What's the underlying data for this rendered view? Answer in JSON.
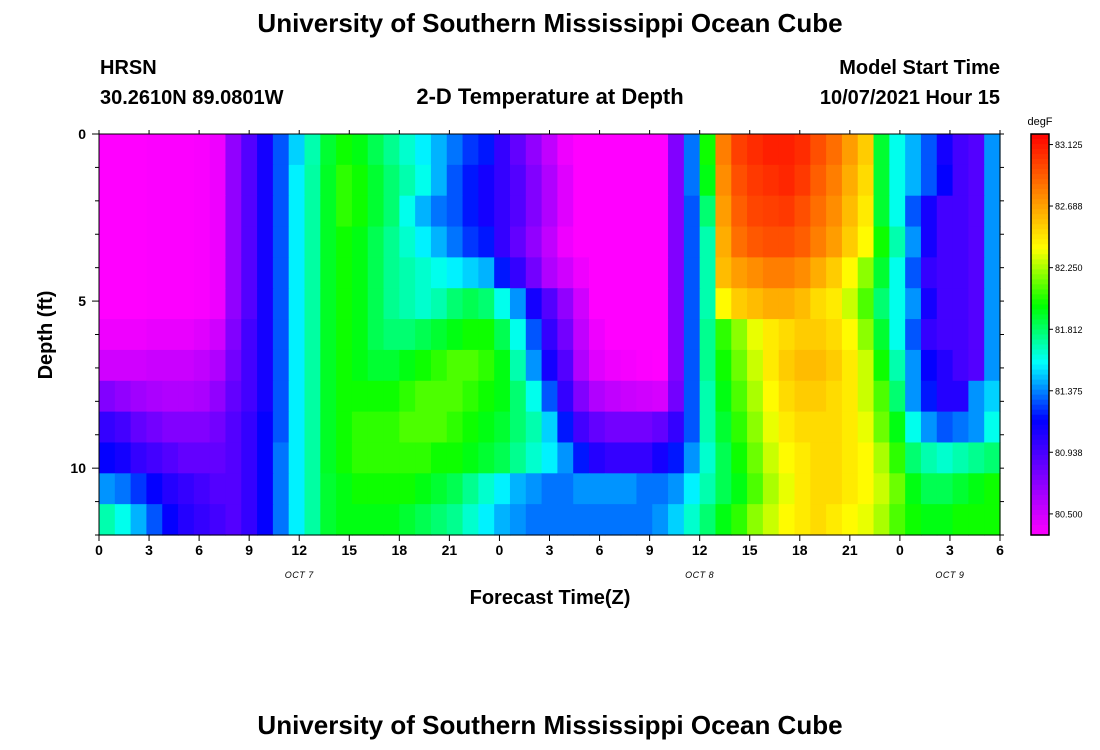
{
  "header": {
    "title": "University of Southern Mississippi Ocean Cube",
    "station": "HRSN",
    "coords": "30.2610N  89.0801W",
    "plot_title": "2-D Temperature at Depth",
    "model_label": "Model Start Time",
    "model_time": "10/07/2021 Hour 15"
  },
  "footer": {
    "title": "University of Southern Mississippi Ocean Cube"
  },
  "colors": {
    "scale": [
      "#ff00ff",
      "#8000ff",
      "#0000ff",
      "#00ffff",
      "#00ff00",
      "#ffff00",
      "#ff8000",
      "#ff0000"
    ]
  },
  "chart_data": {
    "type": "heatmap",
    "title": "2-D Temperature at Depth",
    "xlabel": "Forecast Time(Z)",
    "ylabel": "Depth (ft)",
    "xlim": [
      0,
      54
    ],
    "ylim": [
      0,
      12
    ],
    "x_ticks": [
      {
        "at": 0,
        "label": "0"
      },
      {
        "at": 3,
        "label": "3"
      },
      {
        "at": 6,
        "label": "6"
      },
      {
        "at": 9,
        "label": "9"
      },
      {
        "at": 12,
        "label": "12"
      },
      {
        "at": 15,
        "label": "15"
      },
      {
        "at": 18,
        "label": "18"
      },
      {
        "at": 21,
        "label": "21"
      },
      {
        "at": 24,
        "label": "0"
      },
      {
        "at": 27,
        "label": "3"
      },
      {
        "at": 30,
        "label": "6"
      },
      {
        "at": 33,
        "label": "9"
      },
      {
        "at": 36,
        "label": "12"
      },
      {
        "at": 39,
        "label": "15"
      },
      {
        "at": 42,
        "label": "18"
      },
      {
        "at": 45,
        "label": "21"
      },
      {
        "at": 48,
        "label": "0"
      },
      {
        "at": 51,
        "label": "3"
      },
      {
        "at": 54,
        "label": "6"
      }
    ],
    "date_labels": [
      {
        "at": 12,
        "label": "OCT 7"
      },
      {
        "at": 36,
        "label": "OCT 8"
      },
      {
        "at": 51,
        "label": "OCT 9"
      }
    ],
    "y_ticks": [
      {
        "at": 0,
        "label": "0"
      },
      {
        "at": 5,
        "label": "5"
      },
      {
        "at": 10,
        "label": "10"
      }
    ],
    "colorbar": {
      "unit": "degF",
      "min": 80.35,
      "max": 83.2,
      "labels": [
        "83.125",
        "82.688",
        "82.250",
        "81.812",
        "81.375",
        "80.938",
        "80.500"
      ]
    },
    "depth_levels": [
      0,
      1,
      2,
      3,
      4,
      5,
      6,
      7,
      8,
      9,
      10,
      11,
      12
    ],
    "time_step_hours": 1,
    "values": [
      [
        80.35,
        80.35,
        80.35,
        80.36,
        80.36,
        80.36,
        80.37,
        80.4,
        80.7,
        80.9,
        81.1,
        81.3,
        81.5,
        81.7,
        81.9,
        82.0,
        81.95,
        81.85,
        81.75,
        81.65,
        81.55,
        81.45,
        81.35,
        81.25,
        81.2,
        81.0,
        80.85,
        80.7,
        80.55,
        80.4,
        80.33,
        80.33,
        80.34,
        80.34,
        80.34,
        80.35,
        80.75,
        81.35,
        82.0,
        82.8,
        83.0,
        83.06,
        83.1,
        83.1,
        83.06,
        82.95,
        82.85,
        82.7,
        82.55,
        81.9,
        81.6,
        81.45,
        81.3,
        81.1,
        80.95,
        80.9,
        81.4
      ],
      [
        80.35,
        80.35,
        80.35,
        80.36,
        80.36,
        80.36,
        80.37,
        80.4,
        80.7,
        80.9,
        81.1,
        81.3,
        81.55,
        81.72,
        81.92,
        82.05,
        82.0,
        81.9,
        81.8,
        81.7,
        81.6,
        81.45,
        81.3,
        81.2,
        81.1,
        81.0,
        80.9,
        80.75,
        80.6,
        80.45,
        80.33,
        80.33,
        80.34,
        80.34,
        80.34,
        80.35,
        80.75,
        81.35,
        81.95,
        82.75,
        82.95,
        83.02,
        83.05,
        83.08,
        83.02,
        82.9,
        82.8,
        82.65,
        82.5,
        81.9,
        81.6,
        81.45,
        81.3,
        81.15,
        80.95,
        80.9,
        81.4
      ],
      [
        80.35,
        80.35,
        80.35,
        80.36,
        80.36,
        80.36,
        80.37,
        80.4,
        80.7,
        80.9,
        81.1,
        81.3,
        81.55,
        81.72,
        81.92,
        82.05,
        82.0,
        81.9,
        81.8,
        81.6,
        81.45,
        81.35,
        81.3,
        81.2,
        81.1,
        81.0,
        80.9,
        80.75,
        80.6,
        80.45,
        80.33,
        80.33,
        80.34,
        80.34,
        80.34,
        80.35,
        80.75,
        81.3,
        81.8,
        82.7,
        82.9,
        82.98,
        83.0,
        83.02,
        82.95,
        82.85,
        82.75,
        82.6,
        82.45,
        81.9,
        81.6,
        81.3,
        81.1,
        80.95,
        80.95,
        80.9,
        81.4
      ],
      [
        80.35,
        80.35,
        80.35,
        80.36,
        80.36,
        80.36,
        80.37,
        80.4,
        80.7,
        80.9,
        81.1,
        81.3,
        81.55,
        81.72,
        81.92,
        82.0,
        81.95,
        81.85,
        81.75,
        81.65,
        81.55,
        81.45,
        81.35,
        81.25,
        81.2,
        81.0,
        80.85,
        80.7,
        80.55,
        80.4,
        80.33,
        80.33,
        80.34,
        80.34,
        80.34,
        80.35,
        80.75,
        81.3,
        81.7,
        82.65,
        82.85,
        82.92,
        82.95,
        82.95,
        82.9,
        82.8,
        82.7,
        82.55,
        82.4,
        82.0,
        81.7,
        81.4,
        81.1,
        80.95,
        80.95,
        80.9,
        81.4
      ],
      [
        80.35,
        80.35,
        80.35,
        80.36,
        80.36,
        80.36,
        80.37,
        80.4,
        80.7,
        80.9,
        81.1,
        81.3,
        81.55,
        81.72,
        81.92,
        82.0,
        81.95,
        81.85,
        81.75,
        81.7,
        81.65,
        81.6,
        81.55,
        81.5,
        81.45,
        81.2,
        81.0,
        80.8,
        80.6,
        80.5,
        80.4,
        80.33,
        80.34,
        80.34,
        80.34,
        80.35,
        80.75,
        81.3,
        81.7,
        82.6,
        82.7,
        82.75,
        82.8,
        82.8,
        82.75,
        82.65,
        82.55,
        82.4,
        82.2,
        81.9,
        81.6,
        81.3,
        81.0,
        80.95,
        80.95,
        80.9,
        81.4
      ],
      [
        80.35,
        80.35,
        80.35,
        80.36,
        80.36,
        80.36,
        80.37,
        80.4,
        80.7,
        80.9,
        81.1,
        81.3,
        81.55,
        81.72,
        81.92,
        82.0,
        81.95,
        81.85,
        81.75,
        81.7,
        81.65,
        81.7,
        81.8,
        81.85,
        81.8,
        81.6,
        81.4,
        81.1,
        80.9,
        80.7,
        80.5,
        80.34,
        80.34,
        80.34,
        80.34,
        80.35,
        80.75,
        81.3,
        81.7,
        82.4,
        82.55,
        82.6,
        82.65,
        82.65,
        82.6,
        82.5,
        82.45,
        82.3,
        82.1,
        81.8,
        81.6,
        81.4,
        81.1,
        80.95,
        80.95,
        80.9,
        81.4
      ],
      [
        80.4,
        80.4,
        80.4,
        80.42,
        80.42,
        80.42,
        80.45,
        80.5,
        80.75,
        80.95,
        81.1,
        81.3,
        81.55,
        81.72,
        81.92,
        82.0,
        81.95,
        81.85,
        81.8,
        81.8,
        81.85,
        81.9,
        81.95,
        82.0,
        82.0,
        81.85,
        81.6,
        81.3,
        81.0,
        80.8,
        80.55,
        80.4,
        80.34,
        80.34,
        80.34,
        80.35,
        80.75,
        81.3,
        81.75,
        82.05,
        82.2,
        82.35,
        82.45,
        82.5,
        82.55,
        82.55,
        82.5,
        82.4,
        82.2,
        81.9,
        81.6,
        81.3,
        81.0,
        80.95,
        80.95,
        80.9,
        81.4
      ],
      [
        80.5,
        80.5,
        80.5,
        80.52,
        80.52,
        80.52,
        80.55,
        80.6,
        80.8,
        80.95,
        81.1,
        81.3,
        81.55,
        81.72,
        81.92,
        82.0,
        81.95,
        81.9,
        81.9,
        81.95,
        82.0,
        82.05,
        82.1,
        82.1,
        82.05,
        81.95,
        81.7,
        81.4,
        81.1,
        80.9,
        80.6,
        80.45,
        80.4,
        80.38,
        80.36,
        80.35,
        80.75,
        81.3,
        81.75,
        82.0,
        82.15,
        82.3,
        82.45,
        82.55,
        82.6,
        82.6,
        82.55,
        82.45,
        82.3,
        82.0,
        81.7,
        81.4,
        81.15,
        81.05,
        80.95,
        80.9,
        81.4
      ],
      [
        80.75,
        80.7,
        80.65,
        80.62,
        80.6,
        80.6,
        80.62,
        80.7,
        80.85,
        80.95,
        81.1,
        81.3,
        81.55,
        81.72,
        81.92,
        82.0,
        82.0,
        82.0,
        82.0,
        82.05,
        82.1,
        82.1,
        82.1,
        82.05,
        82.0,
        81.95,
        81.8,
        81.6,
        81.3,
        81.0,
        80.75,
        80.6,
        80.55,
        80.52,
        80.5,
        80.48,
        80.8,
        81.3,
        81.7,
        81.95,
        82.1,
        82.25,
        82.4,
        82.5,
        82.55,
        82.55,
        82.5,
        82.45,
        82.3,
        82.1,
        81.8,
        81.4,
        81.2,
        81.05,
        81.05,
        81.4,
        81.5
      ],
      [
        81.0,
        80.95,
        80.85,
        80.8,
        80.75,
        80.75,
        80.75,
        80.8,
        80.9,
        81.0,
        81.15,
        81.3,
        81.55,
        81.72,
        81.92,
        82.0,
        82.05,
        82.05,
        82.05,
        82.1,
        82.1,
        82.1,
        82.05,
        82.0,
        81.95,
        81.9,
        81.8,
        81.7,
        81.5,
        81.2,
        80.95,
        80.85,
        80.8,
        80.8,
        80.8,
        80.85,
        81.0,
        81.3,
        81.7,
        81.9,
        82.05,
        82.2,
        82.35,
        82.45,
        82.5,
        82.5,
        82.5,
        82.45,
        82.35,
        82.15,
        81.95,
        81.6,
        81.4,
        81.3,
        81.35,
        81.4,
        81.6
      ],
      [
        81.15,
        81.1,
        81.0,
        80.95,
        80.9,
        80.85,
        80.85,
        80.85,
        80.9,
        81.0,
        81.15,
        81.35,
        81.55,
        81.72,
        81.92,
        82.0,
        82.05,
        82.05,
        82.05,
        82.05,
        82.05,
        82.0,
        82.0,
        81.95,
        81.9,
        81.85,
        81.75,
        81.65,
        81.55,
        81.4,
        81.2,
        81.05,
        81.0,
        81.0,
        81.0,
        81.1,
        81.2,
        81.4,
        81.65,
        81.85,
        82.0,
        82.15,
        82.3,
        82.4,
        82.45,
        82.5,
        82.5,
        82.45,
        82.4,
        82.25,
        82.05,
        81.8,
        81.7,
        81.65,
        81.7,
        81.75,
        81.8
      ],
      [
        81.4,
        81.35,
        81.25,
        81.15,
        81.05,
        81.0,
        80.95,
        80.9,
        80.9,
        81.0,
        81.15,
        81.35,
        81.55,
        81.72,
        81.9,
        81.95,
        82.0,
        82.0,
        82.0,
        82.0,
        81.95,
        81.9,
        81.85,
        81.75,
        81.65,
        81.55,
        81.45,
        81.4,
        81.35,
        81.35,
        81.4,
        81.4,
        81.4,
        81.4,
        81.35,
        81.35,
        81.4,
        81.55,
        81.7,
        81.85,
        81.95,
        82.1,
        82.25,
        82.35,
        82.45,
        82.5,
        82.5,
        82.45,
        82.4,
        82.3,
        82.15,
        81.95,
        81.85,
        81.85,
        81.9,
        81.95,
        82.0
      ],
      [
        81.7,
        81.6,
        81.45,
        81.3,
        81.15,
        81.05,
        81.0,
        80.95,
        80.9,
        81.0,
        81.15,
        81.35,
        81.55,
        81.72,
        81.9,
        81.95,
        81.95,
        81.95,
        81.95,
        81.9,
        81.85,
        81.8,
        81.75,
        81.65,
        81.55,
        81.45,
        81.4,
        81.35,
        81.35,
        81.35,
        81.35,
        81.35,
        81.35,
        81.35,
        81.35,
        81.4,
        81.5,
        81.65,
        81.8,
        81.95,
        82.05,
        82.2,
        82.3,
        82.4,
        82.45,
        82.5,
        82.45,
        82.4,
        82.35,
        82.25,
        82.1,
        82.0,
        81.95,
        81.95,
        82.0,
        82.0,
        82.0
      ]
    ]
  }
}
